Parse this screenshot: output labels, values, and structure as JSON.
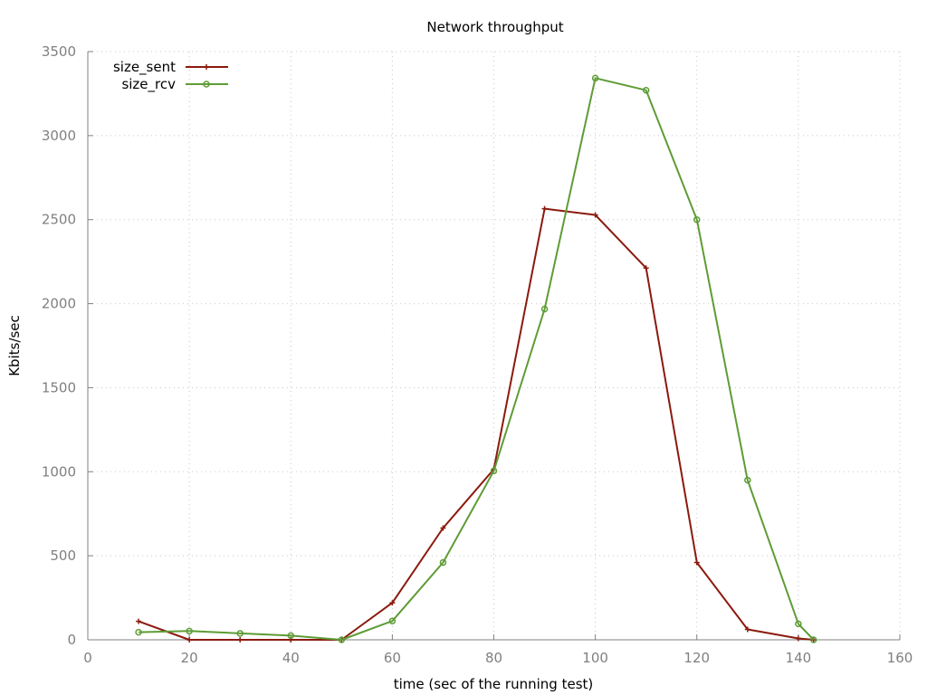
{
  "chart_data": {
    "type": "line",
    "title": "Network throughput",
    "xlabel": "time (sec of the running test)",
    "ylabel": "Kbits/sec",
    "xlim": [
      0,
      160
    ],
    "ylim": [
      0,
      3500
    ],
    "xticks": [
      0,
      20,
      40,
      60,
      80,
      100,
      120,
      140,
      160
    ],
    "yticks": [
      0,
      500,
      1000,
      1500,
      2000,
      2500,
      3000,
      3500
    ],
    "xtick_labels": [
      "0",
      "20",
      "40",
      "60",
      "80",
      "100",
      "120",
      "140",
      "160"
    ],
    "ytick_labels": [
      "0",
      "500",
      "1000",
      "1500",
      "2000",
      "2500",
      "3000",
      "3500"
    ],
    "grid": true,
    "legend_position": "top-left",
    "series": [
      {
        "name": "size_sent",
        "color": "#8b1a0e",
        "marker": "plus",
        "x": [
          10,
          20,
          30,
          40,
          50,
          60,
          70,
          80,
          90,
          100,
          110,
          120,
          130,
          140,
          143
        ],
        "y": [
          110,
          0,
          0,
          0,
          0,
          220,
          665,
          1015,
          2565,
          2528,
          2212,
          460,
          62,
          8,
          0
        ]
      },
      {
        "name": "size_rcv",
        "color": "#5e9c36",
        "marker": "circle",
        "x": [
          10,
          20,
          30,
          40,
          50,
          60,
          70,
          80,
          90,
          100,
          110,
          120,
          130,
          140,
          143
        ],
        "y": [
          45,
          52,
          38,
          25,
          0,
          112,
          460,
          1005,
          1968,
          3342,
          3270,
          2500,
          950,
          95,
          0
        ]
      }
    ]
  }
}
